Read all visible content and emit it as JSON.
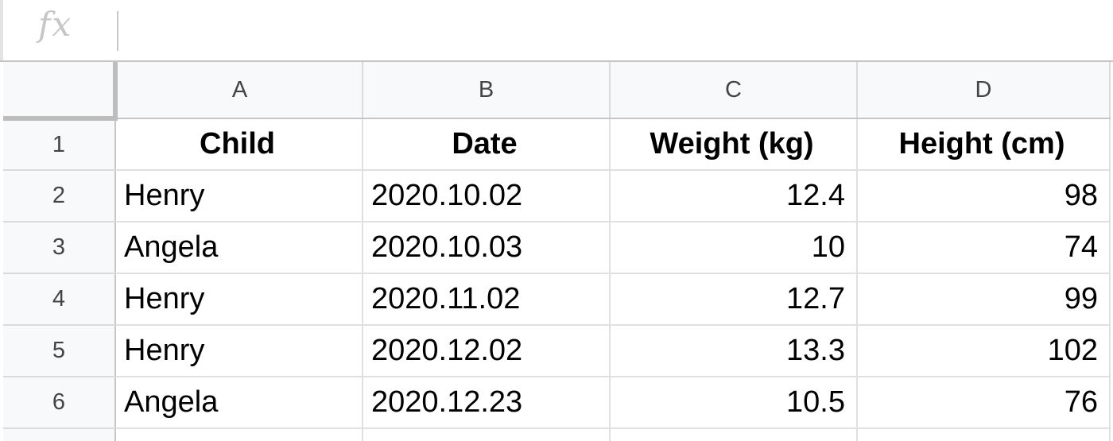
{
  "formula_bar": {
    "fx_label": "fx",
    "value": ""
  },
  "columns": [
    "A",
    "B",
    "C",
    "D"
  ],
  "rows": [
    {
      "num": "1",
      "cells": [
        "Child",
        "Date",
        "Weight (kg)",
        "Height (cm)"
      ]
    },
    {
      "num": "2",
      "cells": [
        "Henry",
        "2020.10.02",
        "12.4",
        "98"
      ]
    },
    {
      "num": "3",
      "cells": [
        "Angela",
        "2020.10.03",
        "10",
        "74"
      ]
    },
    {
      "num": "4",
      "cells": [
        "Henry",
        "2020.11.02",
        "12.7",
        "99"
      ]
    },
    {
      "num": "5",
      "cells": [
        "Henry",
        "2020.12.02",
        "13.3",
        "102"
      ]
    },
    {
      "num": "6",
      "cells": [
        "Angela",
        "2020.12.23",
        "10.5",
        "76"
      ]
    }
  ]
}
